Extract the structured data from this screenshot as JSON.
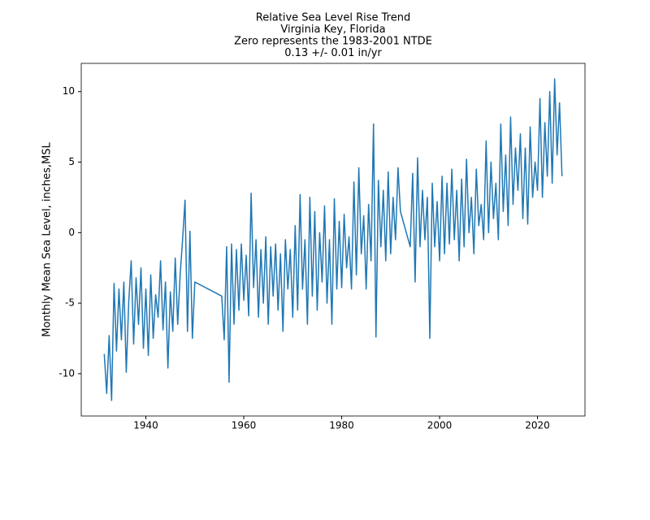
{
  "chart_data": {
    "type": "line",
    "title": [
      "Relative Sea Level Rise Trend",
      "Virginia Key, Florida",
      "Zero represents the 1983-2001 NTDE",
      "0.13 +/- 0.01 in/yr"
    ],
    "ylabel": "Monthly Mean Sea Level, inches,MSL",
    "color": "#1f77b4",
    "xlim": [
      1926.8,
      2029.7
    ],
    "xticks": [
      1940,
      1960,
      1980,
      2000,
      2020
    ],
    "ylim": [
      -13.0,
      12.0
    ],
    "yticks": [
      -10,
      -5,
      0,
      5,
      10
    ],
    "grid": false,
    "x": [
      1931.5,
      1932,
      1932.5,
      1933,
      1933.5,
      1934,
      1934.5,
      1935,
      1935.5,
      1936,
      1936.5,
      1937,
      1937.5,
      1938,
      1938.5,
      1939,
      1939.5,
      1940,
      1940.5,
      1941,
      1941.5,
      1942,
      1942.5,
      1943,
      1943.5,
      1944,
      1944.5,
      1945,
      1945.5,
      1946,
      1946.5,
      1947,
      1947.5,
      1948,
      1948.5,
      1949,
      1949.5,
      1950,
      1955.5,
      1956,
      1956.5,
      1957,
      1957.5,
      1958,
      1958.5,
      1959,
      1959.5,
      1960,
      1960.5,
      1961,
      1961.5,
      1962,
      1962.5,
      1963,
      1963.5,
      1964,
      1964.5,
      1965,
      1965.5,
      1966,
      1966.5,
      1967,
      1967.5,
      1968,
      1968.5,
      1969,
      1969.5,
      1970,
      1970.5,
      1971,
      1971.5,
      1972,
      1972.5,
      1973,
      1973.5,
      1974,
      1974.5,
      1975,
      1975.5,
      1976,
      1976.5,
      1977,
      1977.5,
      1978,
      1978.5,
      1979,
      1979.5,
      1980,
      1980.5,
      1981,
      1981.5,
      1982,
      1982.5,
      1983,
      1983.5,
      1984,
      1984.5,
      1985,
      1985.5,
      1986,
      1986.5,
      1987,
      1987.5,
      1988,
      1988.5,
      1989,
      1989.5,
      1990,
      1990.5,
      1991,
      1991.5,
      1992,
      1994,
      1994.5,
      1995,
      1995.5,
      1996,
      1996.5,
      1997,
      1997.5,
      1998,
      1998.5,
      1999,
      1999.5,
      2000,
      2000.5,
      2001,
      2001.5,
      2002,
      2002.5,
      2003,
      2003.5,
      2004,
      2004.5,
      2005,
      2005.5,
      2006,
      2006.5,
      2007,
      2007.5,
      2008,
      2008.5,
      2009,
      2009.5,
      2010,
      2010.5,
      2011,
      2011.5,
      2012,
      2012.5,
      2013,
      2013.5,
      2014,
      2014.5,
      2015,
      2015.5,
      2016,
      2016.5,
      2017,
      2017.5,
      2018,
      2018.5,
      2019,
      2019.5,
      2020,
      2020.5,
      2021,
      2021.5,
      2022,
      2022.5,
      2023,
      2023.5,
      2024,
      2024.5,
      2025
    ],
    "values": [
      -8.6,
      -11.4,
      -7.3,
      -11.9,
      -3.6,
      -8.4,
      -4.0,
      -7.6,
      -3.5,
      -9.9,
      -4.9,
      -2.0,
      -7.9,
      -3.2,
      -6.5,
      -2.5,
      -8.2,
      -4.0,
      -8.7,
      -3.0,
      -7.5,
      -4.4,
      -6.0,
      -2.0,
      -6.9,
      -3.5,
      -9.6,
      -4.2,
      -7.0,
      -1.8,
      -6.5,
      -3.0,
      -0.5,
      2.3,
      -7.0,
      0.1,
      -7.5,
      -3.5,
      -4.5,
      -7.6,
      -1.0,
      -10.6,
      -0.8,
      -6.5,
      -1.2,
      -5.5,
      -0.8,
      -4.8,
      -1.6,
      -5.9,
      2.8,
      -3.9,
      -0.5,
      -6.0,
      -1.2,
      -5.0,
      -0.3,
      -6.5,
      -1.0,
      -4.5,
      -0.8,
      -5.5,
      -1.5,
      -7.0,
      -0.5,
      -4.0,
      -1.2,
      -6.0,
      0.5,
      -5.5,
      2.7,
      -4.0,
      -0.5,
      -6.5,
      2.5,
      -4.5,
      1.5,
      -5.5,
      0.0,
      -3.5,
      1.9,
      -5.0,
      -0.5,
      -6.5,
      2.4,
      -4.0,
      0.8,
      -3.9,
      1.3,
      -2.5,
      -0.3,
      -4.0,
      3.6,
      -3.0,
      4.6,
      -1.5,
      1.2,
      -4.0,
      2.0,
      -2.0,
      7.7,
      -7.4,
      3.7,
      -1.0,
      3.0,
      -2.0,
      4.3,
      -1.5,
      2.5,
      -0.5,
      4.6,
      1.5,
      -1.0,
      4.2,
      -3.5,
      5.3,
      -1.0,
      3.0,
      -0.5,
      2.5,
      -7.5,
      3.5,
      -1.0,
      2.2,
      -2.0,
      4.0,
      -1.5,
      3.5,
      -0.8,
      4.5,
      -0.5,
      3.0,
      -2.0,
      3.8,
      -1.0,
      5.2,
      0.0,
      2.5,
      -1.5,
      4.5,
      0.5,
      2.0,
      -0.5,
      6.5,
      0.0,
      5.0,
      1.0,
      3.5,
      -0.5,
      7.7,
      1.5,
      5.5,
      0.5,
      8.2,
      2.0,
      6.0,
      3.0,
      7.0,
      1.0,
      6.0,
      0.6,
      7.5,
      2.5,
      5.0,
      3.0,
      9.5,
      2.5,
      7.8,
      4.0,
      10.0,
      3.5,
      10.9,
      5.5,
      9.2,
      4.0
    ]
  }
}
